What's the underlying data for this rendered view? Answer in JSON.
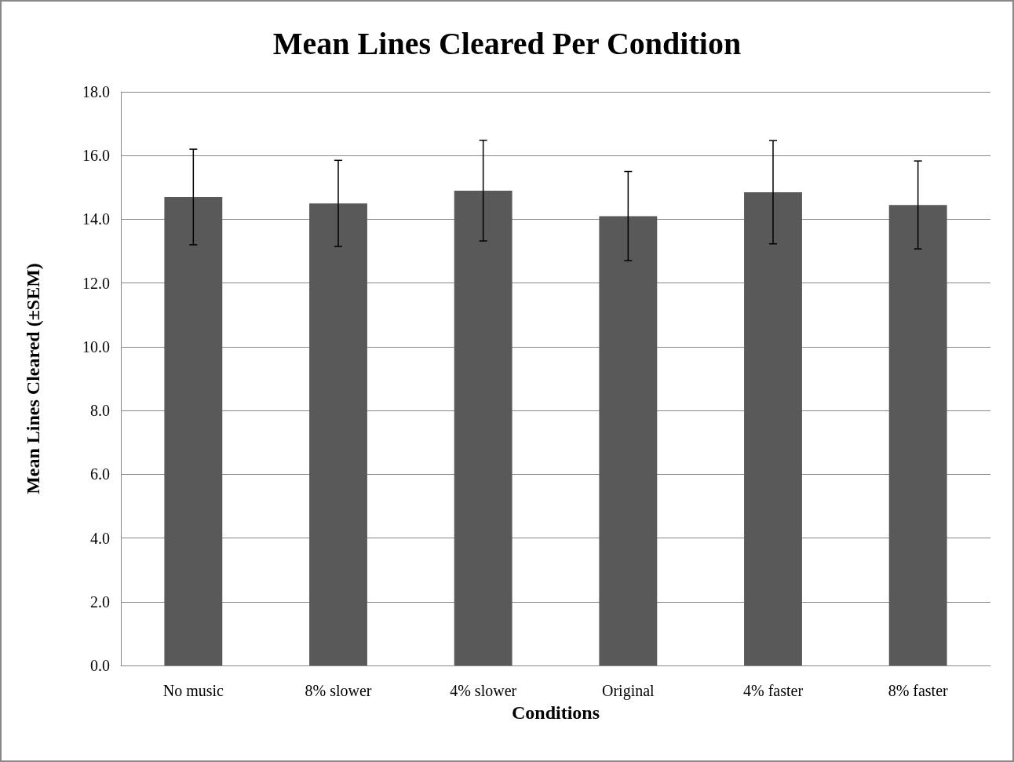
{
  "chart_data": {
    "type": "bar",
    "title": "Mean Lines Cleared Per Condition",
    "xlabel": "Conditions",
    "ylabel": "Mean Lines Cleared (±SEM)",
    "categories": [
      "No music",
      "8% slower",
      "4% slower",
      "Original",
      "4% faster",
      "8% faster"
    ],
    "values": [
      14.7,
      14.5,
      14.9,
      14.1,
      14.85,
      14.45
    ],
    "errors": [
      1.5,
      1.35,
      1.58,
      1.4,
      1.62,
      1.38
    ],
    "color": "#595959",
    "ylim": [
      0,
      18
    ],
    "yticks": [
      {
        "value": 0,
        "label": "0.0"
      },
      {
        "value": 2,
        "label": "2.0"
      },
      {
        "value": 4,
        "label": "4.0"
      },
      {
        "value": 6,
        "label": "6.0"
      },
      {
        "value": 8,
        "label": "8.0"
      },
      {
        "value": 10,
        "label": "10.0"
      },
      {
        "value": 12,
        "label": "12.0"
      },
      {
        "value": 14,
        "label": "14.0"
      },
      {
        "value": 16,
        "label": "16.0"
      },
      {
        "value": 18,
        "label": "18.0"
      }
    ],
    "grid": "y"
  }
}
